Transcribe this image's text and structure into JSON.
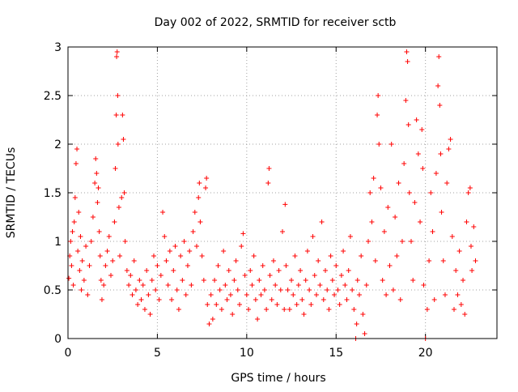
{
  "chart_data": {
    "type": "scatter",
    "title": "Day 002 of 2022, SRMTID for receiver sctb",
    "xlabel": "GPS time / hours",
    "ylabel": "SRMTID / TECUs",
    "xlim": [
      0,
      24
    ],
    "ylim": [
      0,
      3
    ],
    "xticks": [
      0,
      5,
      10,
      15,
      20
    ],
    "xtick_labels": [
      "0",
      "5",
      "10",
      "15",
      "20"
    ],
    "yticks": [
      0,
      0.5,
      1,
      1.5,
      2,
      2.5,
      3
    ],
    "ytick_labels": [
      "0",
      "0.5",
      "1",
      "1.5",
      "2",
      "2.5",
      "3"
    ],
    "grid": true,
    "marker": "+",
    "color": "#ff0000",
    "series": [
      {
        "name": "SRMTID",
        "points": [
          [
            0.05,
            0.62
          ],
          [
            0.1,
            0.85
          ],
          [
            0.15,
            1.0
          ],
          [
            0.2,
            0.75
          ],
          [
            0.25,
            1.1
          ],
          [
            0.3,
            0.55
          ],
          [
            0.35,
            1.2
          ],
          [
            0.4,
            1.45
          ],
          [
            0.45,
            1.8
          ],
          [
            0.5,
            1.95
          ],
          [
            0.55,
            0.9
          ],
          [
            0.6,
            1.3
          ],
          [
            0.65,
            0.7
          ],
          [
            0.7,
            1.05
          ],
          [
            0.75,
            0.5
          ],
          [
            0.8,
            0.8
          ],
          [
            0.9,
            0.6
          ],
          [
            1.0,
            0.95
          ],
          [
            1.1,
            0.45
          ],
          [
            1.2,
            0.75
          ],
          [
            1.3,
            1.0
          ],
          [
            1.4,
            1.25
          ],
          [
            1.5,
            1.6
          ],
          [
            1.55,
            1.85
          ],
          [
            1.6,
            1.7
          ],
          [
            1.65,
            1.4
          ],
          [
            1.7,
            1.55
          ],
          [
            1.75,
            1.1
          ],
          [
            1.8,
            0.85
          ],
          [
            1.85,
            0.6
          ],
          [
            1.9,
            0.4
          ],
          [
            2.0,
            0.55
          ],
          [
            2.1,
            0.75
          ],
          [
            2.2,
            0.9
          ],
          [
            2.3,
            1.05
          ],
          [
            2.4,
            0.65
          ],
          [
            2.5,
            0.8
          ],
          [
            2.6,
            1.2
          ],
          [
            2.65,
            1.75
          ],
          [
            2.7,
            2.3
          ],
          [
            2.72,
            2.9
          ],
          [
            2.75,
            2.95
          ],
          [
            2.78,
            2.5
          ],
          [
            2.8,
            2.0
          ],
          [
            2.85,
            1.35
          ],
          [
            2.9,
            0.85
          ],
          [
            3.0,
            1.45
          ],
          [
            3.05,
            2.3
          ],
          [
            3.1,
            2.05
          ],
          [
            3.15,
            1.5
          ],
          [
            3.2,
            1.0
          ],
          [
            3.3,
            0.7
          ],
          [
            3.4,
            0.55
          ],
          [
            3.5,
            0.65
          ],
          [
            3.6,
            0.45
          ],
          [
            3.7,
            0.8
          ],
          [
            3.8,
            0.5
          ],
          [
            3.9,
            0.35
          ],
          [
            4.0,
            0.6
          ],
          [
            4.1,
            0.4
          ],
          [
            4.2,
            0.55
          ],
          [
            4.3,
            0.3
          ],
          [
            4.4,
            0.7
          ],
          [
            4.5,
            0.45
          ],
          [
            4.6,
            0.25
          ],
          [
            4.7,
            0.6
          ],
          [
            4.8,
            0.85
          ],
          [
            4.9,
            0.5
          ],
          [
            5.0,
            0.75
          ],
          [
            5.1,
            0.4
          ],
          [
            5.2,
            0.65
          ],
          [
            5.3,
            1.3
          ],
          [
            5.4,
            1.05
          ],
          [
            5.5,
            0.8
          ],
          [
            5.6,
            0.55
          ],
          [
            5.7,
            0.9
          ],
          [
            5.8,
            0.4
          ],
          [
            5.9,
            0.7
          ],
          [
            6.0,
            0.95
          ],
          [
            6.1,
            0.5
          ],
          [
            6.2,
            0.3
          ],
          [
            6.3,
            0.85
          ],
          [
            6.4,
            0.6
          ],
          [
            6.5,
            1.0
          ],
          [
            6.6,
            0.45
          ],
          [
            6.7,
            0.75
          ],
          [
            6.8,
            0.9
          ],
          [
            6.9,
            0.55
          ],
          [
            7.0,
            1.1
          ],
          [
            7.1,
            1.3
          ],
          [
            7.2,
            0.95
          ],
          [
            7.3,
            1.45
          ],
          [
            7.35,
            1.6
          ],
          [
            7.4,
            1.2
          ],
          [
            7.5,
            0.85
          ],
          [
            7.6,
            0.6
          ],
          [
            7.7,
            1.55
          ],
          [
            7.75,
            1.65
          ],
          [
            7.8,
            0.35
          ],
          [
            7.9,
            0.15
          ],
          [
            8.0,
            0.45
          ],
          [
            8.1,
            0.2
          ],
          [
            8.2,
            0.6
          ],
          [
            8.3,
            0.35
          ],
          [
            8.4,
            0.75
          ],
          [
            8.5,
            0.5
          ],
          [
            8.6,
            0.3
          ],
          [
            8.7,
            0.9
          ],
          [
            8.8,
            0.55
          ],
          [
            8.9,
            0.4
          ],
          [
            9.0,
            0.7
          ],
          [
            9.1,
            0.45
          ],
          [
            9.2,
            0.25
          ],
          [
            9.3,
            0.6
          ],
          [
            9.4,
            0.8
          ],
          [
            9.5,
            0.5
          ],
          [
            9.6,
            0.35
          ],
          [
            9.7,
            0.95
          ],
          [
            9.8,
            1.08
          ],
          [
            9.9,
            0.65
          ],
          [
            10.0,
            0.45
          ],
          [
            10.1,
            0.3
          ],
          [
            10.2,
            0.7
          ],
          [
            10.3,
            0.55
          ],
          [
            10.4,
            0.85
          ],
          [
            10.5,
            0.4
          ],
          [
            10.6,
            0.2
          ],
          [
            10.7,
            0.6
          ],
          [
            10.8,
            0.45
          ],
          [
            10.9,
            0.75
          ],
          [
            11.0,
            0.5
          ],
          [
            11.1,
            0.3
          ],
          [
            11.2,
            1.6
          ],
          [
            11.25,
            1.75
          ],
          [
            11.3,
            0.65
          ],
          [
            11.4,
            0.4
          ],
          [
            11.5,
            0.8
          ],
          [
            11.6,
            0.55
          ],
          [
            11.7,
            0.35
          ],
          [
            11.8,
            0.7
          ],
          [
            11.9,
            0.5
          ],
          [
            12.0,
            1.1
          ],
          [
            12.1,
            0.3
          ],
          [
            12.15,
            1.38
          ],
          [
            12.2,
            0.75
          ],
          [
            12.3,
            0.5
          ],
          [
            12.4,
            0.3
          ],
          [
            12.5,
            0.6
          ],
          [
            12.6,
            0.45
          ],
          [
            12.7,
            0.85
          ],
          [
            12.8,
            0.35
          ],
          [
            12.9,
            0.55
          ],
          [
            13.0,
            0.7
          ],
          [
            13.1,
            0.4
          ],
          [
            13.2,
            0.25
          ],
          [
            13.3,
            0.6
          ],
          [
            13.4,
            0.9
          ],
          [
            13.5,
            0.5
          ],
          [
            13.6,
            0.35
          ],
          [
            13.7,
            1.05
          ],
          [
            13.8,
            0.65
          ],
          [
            13.9,
            0.45
          ],
          [
            14.0,
            0.8
          ],
          [
            14.1,
            0.55
          ],
          [
            14.2,
            1.2
          ],
          [
            14.3,
            0.4
          ],
          [
            14.4,
            0.7
          ],
          [
            14.5,
            0.5
          ],
          [
            14.6,
            0.3
          ],
          [
            14.7,
            0.85
          ],
          [
            14.8,
            0.6
          ],
          [
            14.9,
            0.45
          ],
          [
            15.0,
            0.75
          ],
          [
            15.1,
            0.5
          ],
          [
            15.2,
            0.35
          ],
          [
            15.3,
            0.65
          ],
          [
            15.4,
            0.9
          ],
          [
            15.5,
            0.55
          ],
          [
            15.6,
            0.4
          ],
          [
            15.7,
            0.7
          ],
          [
            15.8,
            1.05
          ],
          [
            15.9,
            0.5
          ],
          [
            16.0,
            0.3
          ],
          [
            16.1,
            0.0
          ],
          [
            16.15,
            0.15
          ],
          [
            16.2,
            0.6
          ],
          [
            16.3,
            0.45
          ],
          [
            16.4,
            0.85
          ],
          [
            16.5,
            0.25
          ],
          [
            16.6,
            0.05
          ],
          [
            16.7,
            0.55
          ],
          [
            16.8,
            1.0
          ],
          [
            16.9,
            1.5
          ],
          [
            17.0,
            1.2
          ],
          [
            17.1,
            1.65
          ],
          [
            17.2,
            0.8
          ],
          [
            17.3,
            2.3
          ],
          [
            17.35,
            2.5
          ],
          [
            17.4,
            2.0
          ],
          [
            17.5,
            1.55
          ],
          [
            17.6,
            0.6
          ],
          [
            17.7,
            1.1
          ],
          [
            17.8,
            0.45
          ],
          [
            17.9,
            1.35
          ],
          [
            18.0,
            0.75
          ],
          [
            18.1,
            2.0
          ],
          [
            18.2,
            0.5
          ],
          [
            18.3,
            1.25
          ],
          [
            18.4,
            0.85
          ],
          [
            18.5,
            1.6
          ],
          [
            18.6,
            0.4
          ],
          [
            18.7,
            1.0
          ],
          [
            18.8,
            1.8
          ],
          [
            18.9,
            2.45
          ],
          [
            18.95,
            2.95
          ],
          [
            19.0,
            2.85
          ],
          [
            19.05,
            2.2
          ],
          [
            19.1,
            1.5
          ],
          [
            19.2,
            1.0
          ],
          [
            19.3,
            0.6
          ],
          [
            19.4,
            1.4
          ],
          [
            19.5,
            2.25
          ],
          [
            19.6,
            1.9
          ],
          [
            19.7,
            1.2
          ],
          [
            19.8,
            2.15
          ],
          [
            19.85,
            1.75
          ],
          [
            19.9,
            0.55
          ],
          [
            20.0,
            0.0
          ],
          [
            20.1,
            0.3
          ],
          [
            20.2,
            0.8
          ],
          [
            20.3,
            1.5
          ],
          [
            20.4,
            1.1
          ],
          [
            20.5,
            0.4
          ],
          [
            20.6,
            1.7
          ],
          [
            20.7,
            2.6
          ],
          [
            20.75,
            2.9
          ],
          [
            20.8,
            2.4
          ],
          [
            20.85,
            1.9
          ],
          [
            20.9,
            1.3
          ],
          [
            21.0,
            0.8
          ],
          [
            21.1,
            0.45
          ],
          [
            21.2,
            1.6
          ],
          [
            21.3,
            1.95
          ],
          [
            21.4,
            2.05
          ],
          [
            21.5,
            1.05
          ],
          [
            21.6,
            0.3
          ],
          [
            21.7,
            0.7
          ],
          [
            21.8,
            0.45
          ],
          [
            21.9,
            0.9
          ],
          [
            22.0,
            0.35
          ],
          [
            22.1,
            0.6
          ],
          [
            22.2,
            0.25
          ],
          [
            22.3,
            1.2
          ],
          [
            22.4,
            1.5
          ],
          [
            22.5,
            1.55
          ],
          [
            22.55,
            0.95
          ],
          [
            22.6,
            0.7
          ],
          [
            22.7,
            1.15
          ],
          [
            22.8,
            0.8
          ]
        ]
      }
    ]
  }
}
